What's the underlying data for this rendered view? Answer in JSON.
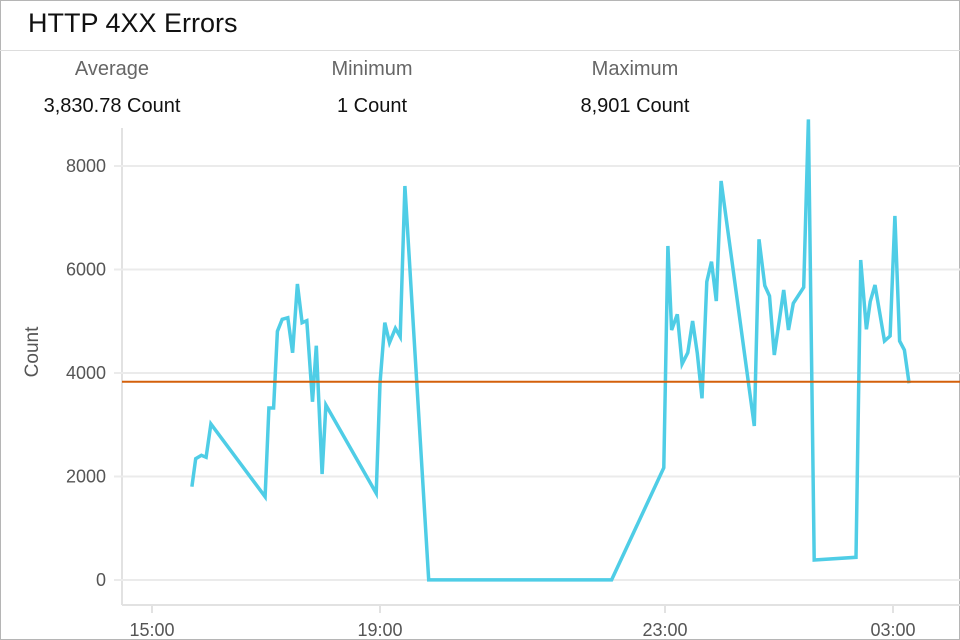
{
  "title": "HTTP 4XX Errors",
  "stats": [
    {
      "label": "Average",
      "value": "3,830.78 Count"
    },
    {
      "label": "Minimum",
      "value": "1 Count"
    },
    {
      "label": "Maximum",
      "value": "8,901 Count"
    }
  ],
  "colors": {
    "series": "#4fcde6",
    "average": "#d4600b",
    "grid": "#ebebeb"
  },
  "chart_data": {
    "type": "line",
    "title": "HTTP 4XX Errors",
    "xlabel": "",
    "ylabel": "Count",
    "ylim": [
      0,
      8800
    ],
    "yticks": [
      0,
      2000,
      4000,
      6000,
      8000
    ],
    "yticklabels": [
      "0",
      "2000",
      "4000",
      "6000",
      "8000"
    ],
    "xticks": [
      "15:00",
      "19:00",
      "23:00",
      "03:00"
    ],
    "grid": true,
    "average_line": 3830.78,
    "series": [
      {
        "x": [
          "15:42",
          "15:46",
          "15:52",
          "15:57",
          "16:02",
          "16:59",
          "17:03",
          "17:08",
          "17:12",
          "17:17",
          "17:23",
          "17:28",
          "17:33",
          "17:38",
          "17:43",
          "17:49",
          "17:53",
          "17:59",
          "18:03",
          "18:56",
          "19:00",
          "19:04",
          "19:08",
          "19:13",
          "19:17",
          "19:21",
          "19:41",
          "22:15",
          "22:59",
          "23:03",
          "23:07",
          "23:13",
          "23:18",
          "23:24",
          "23:29",
          "23:34",
          "23:39",
          "23:44",
          "23:49",
          "23:54",
          "23:59",
          "00:34",
          "00:39",
          "00:45",
          "00:50",
          "00:55",
          "01:05",
          "01:10",
          "01:15",
          "01:26",
          "01:31",
          "01:37",
          "02:21",
          "02:26",
          "02:32",
          "02:36",
          "02:41",
          "02:51",
          "02:57",
          "03:02",
          "03:07",
          "03:12",
          "03:17"
        ],
        "y": [
          1803,
          2344,
          2410,
          2371,
          3014,
          1610,
          3324,
          3324,
          4806,
          5038,
          5069,
          4393,
          5720,
          4972,
          5011,
          3445,
          4528,
          2048,
          3382,
          1675,
          3801,
          4972,
          4585,
          4863,
          4702,
          7613,
          1,
          1,
          2170,
          6454,
          4831,
          5134,
          4174,
          4393,
          5005,
          4380,
          3511,
          5765,
          6151,
          5391,
          7710,
          2976,
          6583,
          5688,
          5488,
          4348,
          5604,
          4831,
          5346,
          5656,
          8901,
          386,
          438,
          6184,
          4844,
          5378,
          5700,
          4618,
          4715,
          7034,
          4618,
          4444,
          3801
        ]
      }
    ]
  }
}
